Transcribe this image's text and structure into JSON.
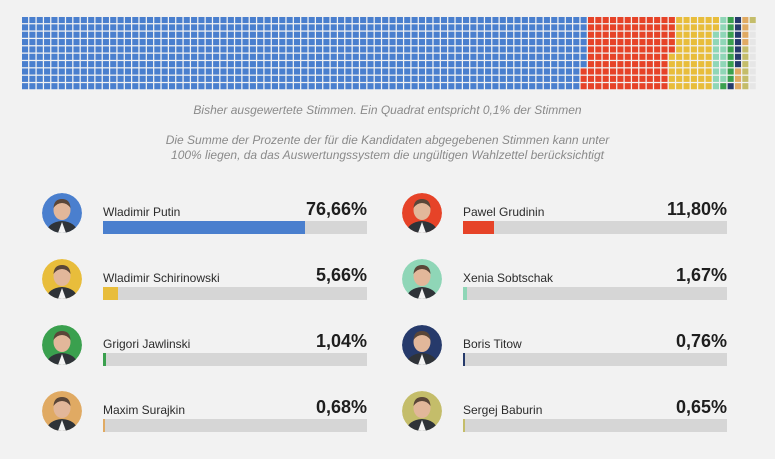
{
  "waffle": {
    "segments": [
      {
        "pct": 76.66,
        "color": "#4a7fce"
      },
      {
        "pct": 11.8,
        "color": "#e64328"
      },
      {
        "pct": 5.66,
        "color": "#e8bd3b"
      },
      {
        "pct": 1.67,
        "color": "#8fd6b7"
      },
      {
        "pct": 1.04,
        "color": "#3aa04e"
      },
      {
        "pct": 0.76,
        "color": "#263a6b"
      },
      {
        "pct": 0.68,
        "color": "#e0aa63"
      },
      {
        "pct": 0.65,
        "color": "#c4bd6a"
      },
      {
        "pct": 1.08,
        "color": "#e6e6e6"
      }
    ]
  },
  "notes": {
    "counted": "Bisher ausgewertete Stimmen. Ein Quadrat entspricht 0,1% der Stimmen",
    "sum": "Die Summe der Prozente der für die Kandidaten abgegebenen Stimmen kann unter 100% liegen, da das Auswertungssystem die ungültigen Wahlzettel berücksichtigt"
  },
  "candidates": [
    {
      "name": "Wladimir Putin",
      "pct": "76,66%",
      "value": 76.66,
      "color": "#4a7fce"
    },
    {
      "name": "Pawel Grudinin",
      "pct": "11,80%",
      "value": 11.8,
      "color": "#e64328"
    },
    {
      "name": "Wladimir Schirinowski",
      "pct": "5,66%",
      "value": 5.66,
      "color": "#e8bd3b"
    },
    {
      "name": "Xenia Sobtschak",
      "pct": "1,67%",
      "value": 1.67,
      "color": "#8fd6b7"
    },
    {
      "name": "Grigori Jawlinski",
      "pct": "1,04%",
      "value": 1.04,
      "color": "#3aa04e"
    },
    {
      "name": "Boris Titow",
      "pct": "0,76%",
      "value": 0.76,
      "color": "#263a6b"
    },
    {
      "name": "Maxim Surajkin",
      "pct": "0,68%",
      "value": 0.68,
      "color": "#e0aa63"
    },
    {
      "name": "Sergej Baburin",
      "pct": "0,65%",
      "value": 0.65,
      "color": "#c4bd6a"
    }
  ]
}
